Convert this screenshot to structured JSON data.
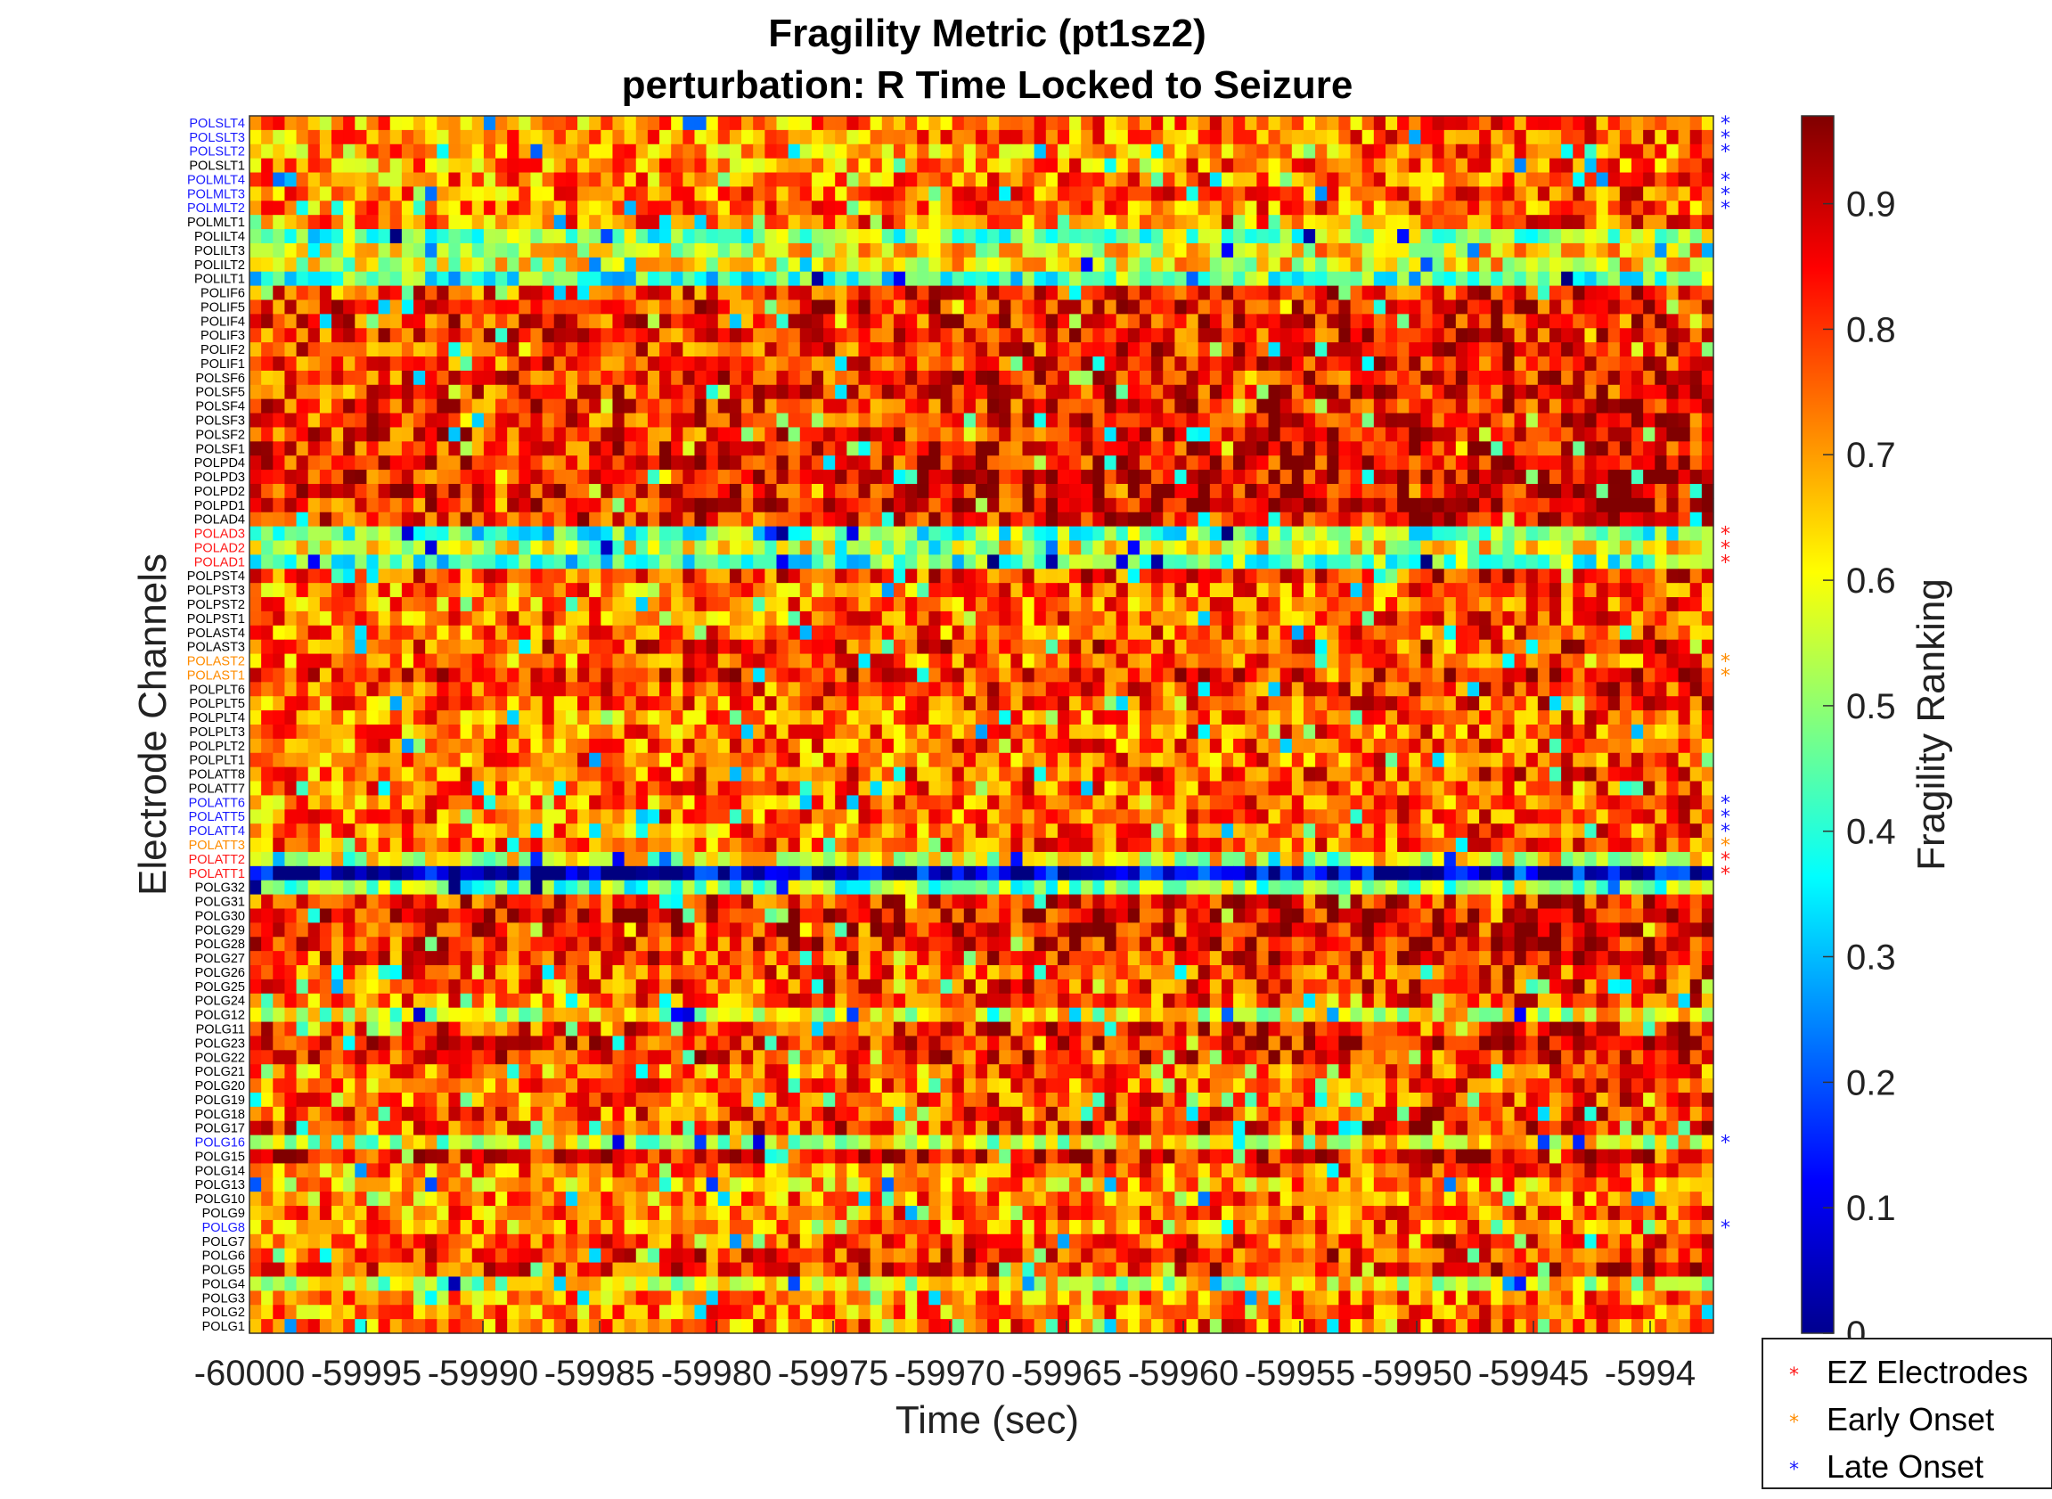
{
  "chart_data": {
    "type": "heatmap",
    "title": "Fragility Metric (pt1sz2)",
    "subtitle": "perturbation: R Time Locked to Seizure",
    "xlabel": "Time (sec)",
    "ylabel": "Electrode Channels",
    "colorbar_label": "Fragility Ranking",
    "colormap": "jet",
    "clim": [
      0,
      0.97
    ],
    "colorbar_ticks": [
      "0",
      "0.1",
      "0.2",
      "0.3",
      "0.4",
      "0.5",
      "0.6",
      "0.7",
      "0.8",
      "0.9"
    ],
    "x_tick_labels": [
      "-60000",
      "-59995",
      "-59990",
      "-59985",
      "-59980",
      "-59975",
      "-59970",
      "-59965",
      "-59960",
      "-59955",
      "-59950",
      "-59945",
      "-5994"
    ],
    "xlim": [
      -60000,
      -59938
    ],
    "time_columns": 125,
    "channels": [
      "POLSLT4",
      "POLSLT3",
      "POLSLT2",
      "POLSLT1",
      "POLMLT4",
      "POLMLT3",
      "POLMLT2",
      "POLMLT1",
      "POLILT4",
      "POLILT3",
      "POLILT2",
      "POLILT1",
      "POLIF6",
      "POLIF5",
      "POLIF4",
      "POLIF3",
      "POLIF2",
      "POLIF1",
      "POLSF6",
      "POLSF5",
      "POLSF4",
      "POLSF3",
      "POLSF2",
      "POLSF1",
      "POLPD4",
      "POLPD3",
      "POLPD2",
      "POLPD1",
      "POLAD4",
      "POLAD3",
      "POLAD2",
      "POLAD1",
      "POLPST4",
      "POLPST3",
      "POLPST2",
      "POLPST1",
      "POLAST4",
      "POLAST3",
      "POLAST2",
      "POLAST1",
      "POLPLT6",
      "POLPLT5",
      "POLPLT4",
      "POLPLT3",
      "POLPLT2",
      "POLPLT1",
      "POLATT8",
      "POLATT7",
      "POLATT6",
      "POLATT5",
      "POLATT4",
      "POLATT3",
      "POLATT2",
      "POLATT1",
      "POLG32",
      "POLG31",
      "POLG30",
      "POLG29",
      "POLG28",
      "POLG27",
      "POLG26",
      "POLG25",
      "POLG24",
      "POLG12",
      "POLG11",
      "POLG23",
      "POLG22",
      "POLG21",
      "POLG20",
      "POLG19",
      "POLG18",
      "POLG17",
      "POLG16",
      "POLG15",
      "POLG14",
      "POLG13",
      "POLG10",
      "POLG9",
      "POLG8",
      "POLG7",
      "POLG6",
      "POLG5",
      "POLG4",
      "POLG3",
      "POLG2",
      "POLG1"
    ],
    "channel_means": [
      0.7,
      0.71,
      0.69,
      0.7,
      0.71,
      0.72,
      0.7,
      0.72,
      0.45,
      0.58,
      0.57,
      0.4,
      0.78,
      0.8,
      0.8,
      0.8,
      0.79,
      0.79,
      0.8,
      0.79,
      0.8,
      0.79,
      0.8,
      0.8,
      0.82,
      0.83,
      0.83,
      0.82,
      0.81,
      0.42,
      0.55,
      0.4,
      0.77,
      0.72,
      0.72,
      0.73,
      0.73,
      0.78,
      0.72,
      0.8,
      0.76,
      0.74,
      0.72,
      0.72,
      0.73,
      0.72,
      0.74,
      0.73,
      0.72,
      0.73,
      0.72,
      0.73,
      0.55,
      0.05,
      0.45,
      0.8,
      0.83,
      0.83,
      0.8,
      0.78,
      0.76,
      0.76,
      0.74,
      0.55,
      0.8,
      0.82,
      0.8,
      0.72,
      0.73,
      0.74,
      0.76,
      0.78,
      0.55,
      0.85,
      0.72,
      0.65,
      0.7,
      0.72,
      0.7,
      0.75,
      0.78,
      0.8,
      0.55,
      0.68,
      0.7,
      0.72
    ],
    "legend": {
      "placement": "bottom-right",
      "entries": [
        {
          "label": "EZ Electrodes",
          "color": "#ff1a1a"
        },
        {
          "label": "Early Onset",
          "color": "#ff8c00"
        },
        {
          "label": "Late Onset",
          "color": "#1a1aff"
        }
      ]
    },
    "ez_electrodes": [
      "POLAD3",
      "POLAD2",
      "POLAD1",
      "POLATT2",
      "POLATT1"
    ],
    "early_onset": [
      "POLAST2",
      "POLAST1",
      "POLATT3"
    ],
    "late_onset": [
      "POLSLT4",
      "POLSLT3",
      "POLSLT2",
      "POLMLT4",
      "POLMLT3",
      "POLMLT2",
      "POLATT6",
      "POLATT5",
      "POLATT4",
      "POLG16",
      "POLG8"
    ],
    "marker_symbol": "*",
    "label_colors": {
      "default": "#000000",
      "ez": "#ff1a1a",
      "early": "#ff8c00",
      "late": "#1a1aff"
    }
  }
}
